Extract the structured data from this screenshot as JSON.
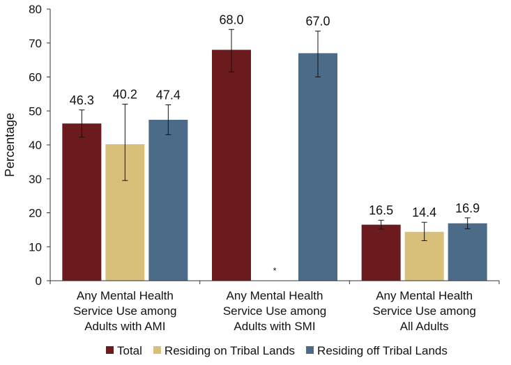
{
  "chart_data": {
    "type": "bar",
    "title": "",
    "xlabel": "",
    "ylabel": "Percentage",
    "ylim": [
      0,
      80
    ],
    "yticks": [
      0,
      10,
      20,
      30,
      40,
      50,
      60,
      70,
      80
    ],
    "grid": false,
    "legend_position": "bottom",
    "categories": [
      [
        "Any Mental Health",
        "Service Use among",
        "Adults with AMI"
      ],
      [
        "Any Mental Health",
        "Service Use among",
        "Adults with SMI"
      ],
      [
        "Any Mental Health",
        "Service Use among",
        "All Adults"
      ]
    ],
    "series": [
      {
        "name": "Total",
        "color": "#6b1a1d",
        "values": [
          46.3,
          68.0,
          16.5
        ],
        "labels": [
          "46.3",
          "68.0",
          "16.5"
        ],
        "error_low": [
          42.3,
          61.5,
          15.2
        ],
        "error_high": [
          50.3,
          74.0,
          17.8
        ]
      },
      {
        "name": "Residing on Tribal Lands",
        "color": "#d8c07a",
        "values": [
          40.2,
          null,
          14.4
        ],
        "labels": [
          "40.2",
          "*",
          "14.4"
        ],
        "error_low": [
          29.5,
          null,
          11.8
        ],
        "error_high": [
          52.0,
          null,
          17.2
        ]
      },
      {
        "name": "Residing off Tribal Lands",
        "color": "#4c6b88",
        "values": [
          47.4,
          67.0,
          16.9
        ],
        "labels": [
          "47.4",
          "67.0",
          "16.9"
        ],
        "error_low": [
          43.0,
          60.0,
          15.3
        ],
        "error_high": [
          51.8,
          73.5,
          18.5
        ]
      }
    ]
  }
}
